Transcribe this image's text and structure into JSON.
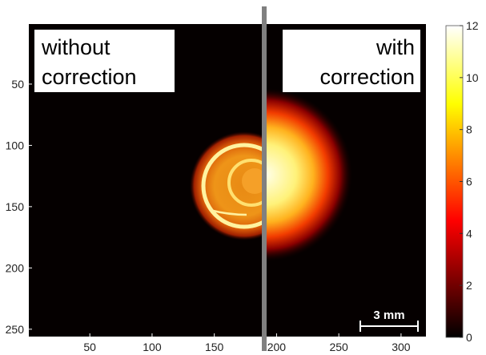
{
  "chart_data": {
    "type": "heatmap",
    "colormap": "hot",
    "panels": [
      {
        "label_line1": "without",
        "label_line2": "correction",
        "description": "ring-shaped emission spot"
      },
      {
        "label_line1": "with",
        "label_line2": "correction",
        "description": "filled bright circular spot"
      }
    ],
    "x_ticks": [
      50,
      100,
      150,
      200,
      250,
      300
    ],
    "y_ticks": [
      50,
      100,
      150,
      200,
      250
    ],
    "x_range": [
      1,
      320
    ],
    "y_range": [
      1,
      256
    ],
    "colorbar": {
      "ticks": [
        0,
        2,
        4,
        6,
        8,
        10,
        12
      ],
      "labels": [
        "0",
        "2",
        "4",
        "6",
        "8",
        "10",
        "12"
      ],
      "range": [
        0,
        12
      ]
    },
    "scale_bar": {
      "label": "3 mm"
    },
    "divider_color": "#808080"
  }
}
